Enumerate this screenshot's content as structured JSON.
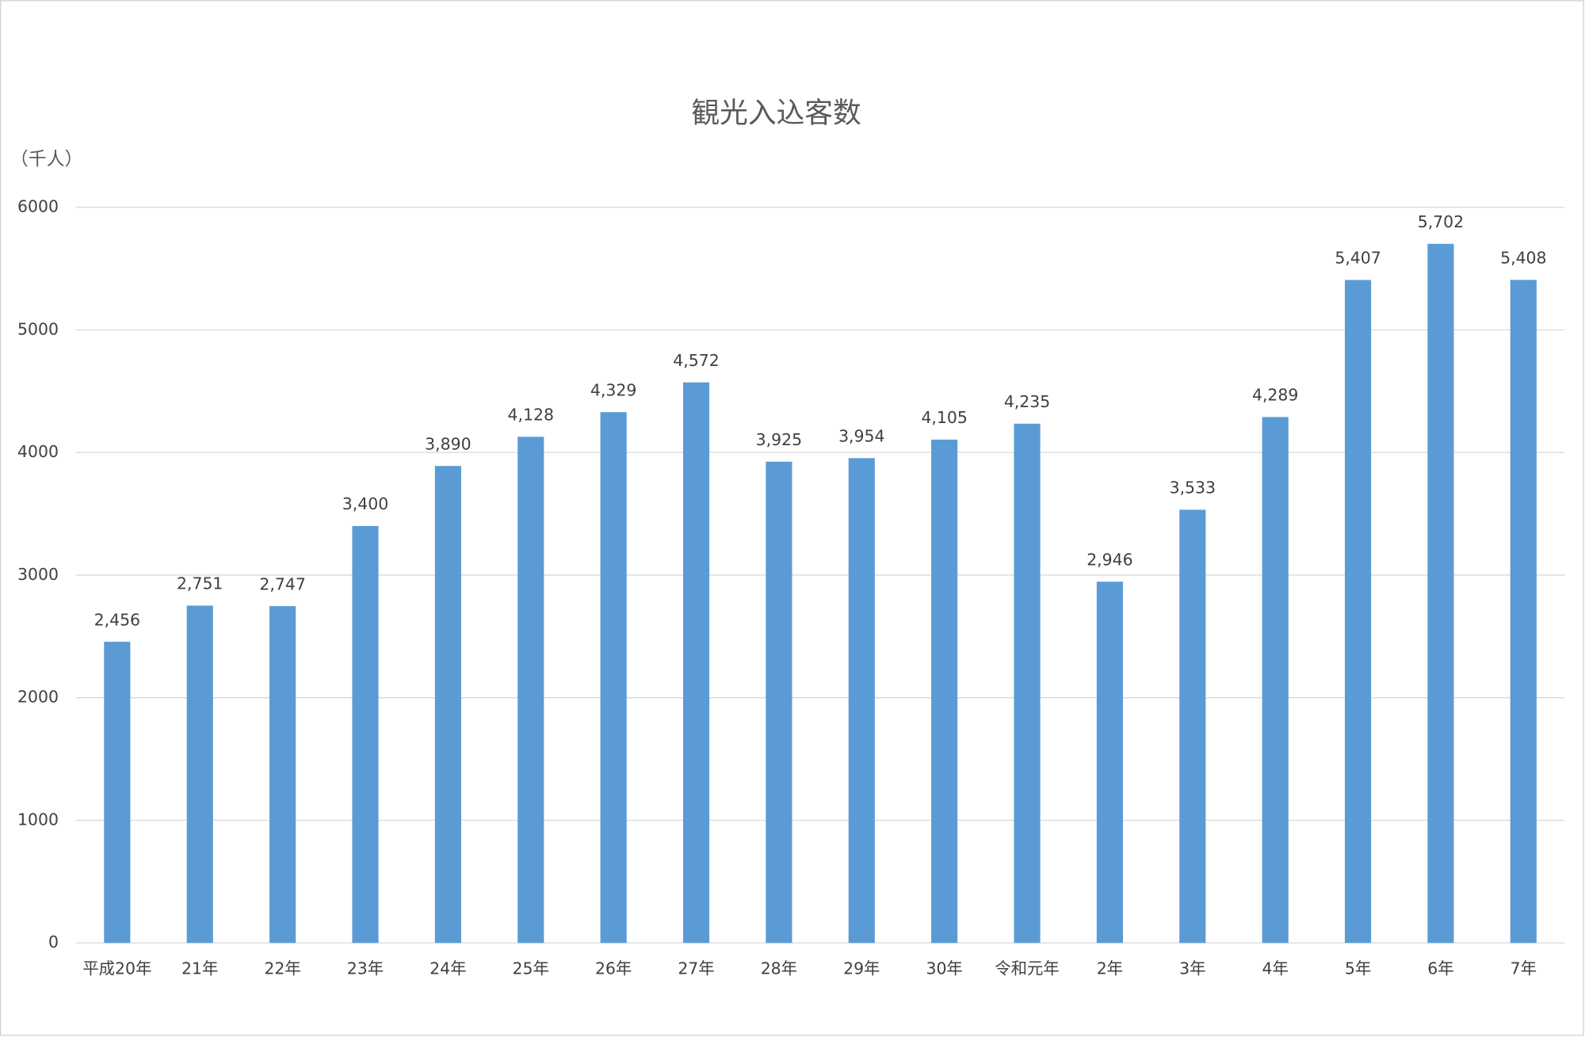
{
  "chart_data": {
    "type": "bar",
    "title": "観光入込客数",
    "y_axis_label": "（千人）",
    "categories": [
      "平成20年",
      "21年",
      "22年",
      "23年",
      "24年",
      "25年",
      "26年",
      "27年",
      "28年",
      "29年",
      "30年",
      "令和元年",
      "2年",
      "3年",
      "4年",
      "5年",
      "6年",
      "7年"
    ],
    "values": [
      2456,
      2751,
      2747,
      3400,
      3890,
      4128,
      4329,
      4572,
      3925,
      3954,
      4105,
      4235,
      2946,
      3533,
      4289,
      5407,
      5702,
      5408
    ],
    "value_labels": [
      "2,456",
      "2,751",
      "2,747",
      "3,400",
      "3,890",
      "4,128",
      "4,329",
      "4,572",
      "3,925",
      "3,954",
      "4,105",
      "4,235",
      "2,946",
      "3,533",
      "4,289",
      "5,407",
      "5,702",
      "5,408"
    ],
    "color": "#5b9bd5",
    "ylim": [
      0,
      6000
    ],
    "yticks": [
      0,
      1000,
      2000,
      3000,
      4000,
      5000,
      6000
    ],
    "grid": true
  }
}
